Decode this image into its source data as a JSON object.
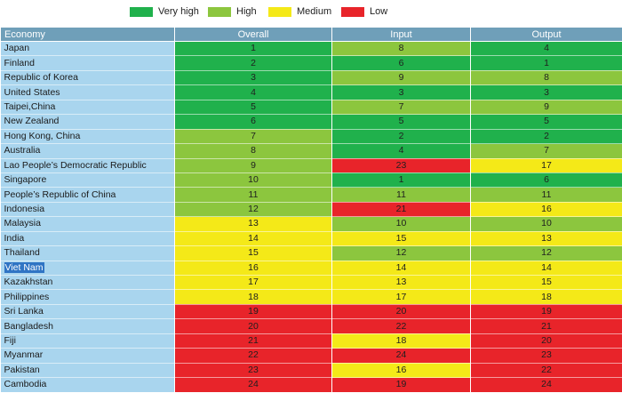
{
  "legend": [
    {
      "label": "Very high",
      "color": "#20b14c"
    },
    {
      "label": "High",
      "color": "#8cc63e"
    },
    {
      "label": "Medium",
      "color": "#f4e918"
    },
    {
      "label": "Low",
      "color": "#e8242a"
    }
  ],
  "chart_data": {
    "type": "table",
    "columns": [
      "Economy",
      "Overall",
      "Input",
      "Output"
    ],
    "level_colors": {
      "vh": "#20b14c",
      "h": "#8cc63e",
      "m": "#f4e918",
      "l": "#e8242a"
    },
    "rows": [
      {
        "economy": "Japan",
        "overall": 1,
        "input": 8,
        "output": 4,
        "levels": [
          "vh",
          "h",
          "vh"
        ]
      },
      {
        "economy": "Finland",
        "overall": 2,
        "input": 6,
        "output": 1,
        "levels": [
          "vh",
          "vh",
          "vh"
        ]
      },
      {
        "economy": "Republic of Korea",
        "overall": 3,
        "input": 9,
        "output": 8,
        "levels": [
          "vh",
          "h",
          "h"
        ]
      },
      {
        "economy": "United States",
        "overall": 4,
        "input": 3,
        "output": 3,
        "levels": [
          "vh",
          "vh",
          "vh"
        ]
      },
      {
        "economy": "Taipei,China",
        "overall": 5,
        "input": 7,
        "output": 9,
        "levels": [
          "vh",
          "h",
          "h"
        ]
      },
      {
        "economy": "New Zealand",
        "overall": 6,
        "input": 5,
        "output": 5,
        "levels": [
          "vh",
          "vh",
          "vh"
        ]
      },
      {
        "economy": "Hong Kong, China",
        "overall": 7,
        "input": 2,
        "output": 2,
        "levels": [
          "h",
          "vh",
          "vh"
        ]
      },
      {
        "economy": "Australia",
        "overall": 8,
        "input": 4,
        "output": 7,
        "levels": [
          "h",
          "vh",
          "h"
        ]
      },
      {
        "economy": "Lao People’s Democratic Republic",
        "overall": 9,
        "input": 23,
        "output": 17,
        "levels": [
          "h",
          "l",
          "m"
        ]
      },
      {
        "economy": "Singapore",
        "overall": 10,
        "input": 1,
        "output": 6,
        "levels": [
          "h",
          "vh",
          "vh"
        ]
      },
      {
        "economy": "People’s Republic of China",
        "overall": 11,
        "input": 11,
        "output": 11,
        "levels": [
          "h",
          "h",
          "h"
        ]
      },
      {
        "economy": "Indonesia",
        "overall": 12,
        "input": 21,
        "output": 16,
        "levels": [
          "h",
          "l",
          "m"
        ]
      },
      {
        "economy": "Malaysia",
        "overall": 13,
        "input": 10,
        "output": 10,
        "levels": [
          "m",
          "h",
          "h"
        ]
      },
      {
        "economy": "India",
        "overall": 14,
        "input": 15,
        "output": 13,
        "levels": [
          "m",
          "m",
          "m"
        ]
      },
      {
        "economy": "Thailand",
        "overall": 15,
        "input": 12,
        "output": 12,
        "levels": [
          "m",
          "h",
          "h"
        ]
      },
      {
        "economy": "Viet Nam",
        "overall": 16,
        "input": 14,
        "output": 14,
        "levels": [
          "m",
          "m",
          "m"
        ],
        "highlighted": true
      },
      {
        "economy": "Kazakhstan",
        "overall": 17,
        "input": 13,
        "output": 15,
        "levels": [
          "m",
          "m",
          "m"
        ]
      },
      {
        "economy": "Philippines",
        "overall": 18,
        "input": 17,
        "output": 18,
        "levels": [
          "m",
          "m",
          "m"
        ]
      },
      {
        "economy": "Sri Lanka",
        "overall": 19,
        "input": 20,
        "output": 19,
        "levels": [
          "l",
          "l",
          "l"
        ]
      },
      {
        "economy": "Bangladesh",
        "overall": 20,
        "input": 22,
        "output": 21,
        "levels": [
          "l",
          "l",
          "l"
        ]
      },
      {
        "economy": "Fiji",
        "overall": 21,
        "input": 18,
        "output": 20,
        "levels": [
          "l",
          "m",
          "l"
        ]
      },
      {
        "economy": "Myanmar",
        "overall": 22,
        "input": 24,
        "output": 23,
        "levels": [
          "l",
          "l",
          "l"
        ]
      },
      {
        "economy": "Pakistan",
        "overall": 23,
        "input": 16,
        "output": 22,
        "levels": [
          "l",
          "m",
          "l"
        ]
      },
      {
        "economy": "Cambodia",
        "overall": 24,
        "input": 19,
        "output": 24,
        "levels": [
          "l",
          "l",
          "l"
        ]
      }
    ]
  }
}
